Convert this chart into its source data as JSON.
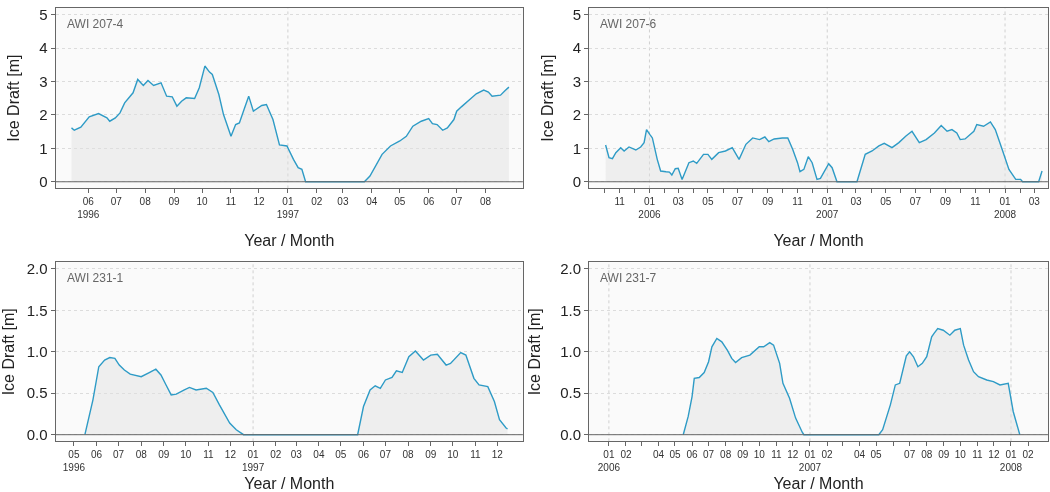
{
  "chart_data": [
    {
      "type": "area",
      "title": "AWI 207-4",
      "xlabel": "Year / Month",
      "ylabel": "Ice Draft [m]",
      "grid": "y",
      "x": [
        "1996-05-14",
        "1996-05-17",
        "1996-05-24",
        "1996-06-02",
        "1996-06-12",
        "1996-06-21",
        "1996-06-24",
        "1996-06-30",
        "1996-07-05",
        "1996-07-10",
        "1996-07-19",
        "1996-07-24",
        "1996-07-30",
        "1996-08-04",
        "1996-08-10",
        "1996-08-18",
        "1996-08-24",
        "1996-08-30",
        "1996-09-04",
        "1996-09-09",
        "1996-09-14",
        "1996-09-23",
        "1996-09-28",
        "1996-10-04",
        "1996-10-09",
        "1996-10-12",
        "1996-10-19",
        "1996-10-24",
        "1996-11-01",
        "1996-11-06",
        "1996-11-10",
        "1996-11-15",
        "1996-11-20",
        "1996-11-25",
        "1996-12-04",
        "1996-12-09",
        "1996-12-16",
        "1996-12-23",
        "1996-12-31",
        "1997-01-07",
        "1997-01-12",
        "1997-01-16",
        "1997-01-20",
        "1997-03-24",
        "1997-03-30",
        "1997-04-12",
        "1997-04-21",
        "1997-05-01",
        "1997-05-08",
        "1997-05-15",
        "1997-05-24",
        "1997-06-01",
        "1997-06-05",
        "1997-06-10",
        "1997-06-16",
        "1997-06-21",
        "1997-06-28",
        "1997-07-01",
        "1997-07-06",
        "1997-07-15",
        "1997-07-22",
        "1997-07-30",
        "1997-08-04",
        "1997-08-08",
        "1997-08-17",
        "1997-08-22",
        "1997-08-26"
      ],
      "series": [
        {
          "color": "#2e9bc6",
          "values": [
            1.61,
            1.54,
            1.63,
            1.94,
            2.04,
            1.91,
            1.81,
            1.91,
            2.06,
            2.36,
            2.66,
            3.06,
            2.88,
            3.03,
            2.88,
            2.96,
            2.56,
            2.54,
            2.26,
            2.41,
            2.51,
            2.49,
            2.81,
            3.46,
            3.28,
            3.21,
            2.61,
            2.01,
            1.36,
            1.71,
            1.76,
            2.16,
            2.56,
            2.11,
            2.28,
            2.31,
            1.86,
            1.1,
            1.07,
            0.67,
            0.42,
            0.37,
            0,
            0,
            0.17,
            0.82,
            1.07,
            1.22,
            1.36,
            1.66,
            1.81,
            1.89,
            1.74,
            1.71,
            1.54,
            1.61,
            1.86,
            2.11,
            2.24,
            2.46,
            2.63,
            2.74,
            2.68,
            2.56,
            2.59,
            2.73,
            2.83
          ]
        }
      ],
      "xlim": [
        "1996-04-27",
        "1997-09-10"
      ],
      "ylim": [
        -0.2,
        5.2
      ],
      "yticks": [
        0,
        1,
        2,
        3,
        4,
        5
      ],
      "xticks": [
        {
          "value": "1996-06",
          "label": "06\n1996"
        },
        {
          "value": "1996-07",
          "label": "07"
        },
        {
          "value": "1996-08",
          "label": "08"
        },
        {
          "value": "1996-09",
          "label": "09"
        },
        {
          "value": "1996-10",
          "label": "10"
        },
        {
          "value": "1996-11",
          "label": "11"
        },
        {
          "value": "1996-12",
          "label": "12"
        },
        {
          "value": "1997-01",
          "label": "01\n1997"
        },
        {
          "value": "1997-02",
          "label": "02"
        },
        {
          "value": "1997-03",
          "label": "03"
        },
        {
          "value": "1997-04",
          "label": "04"
        },
        {
          "value": "1997-05",
          "label": "05"
        },
        {
          "value": "1997-06",
          "label": "06"
        },
        {
          "value": "1997-07",
          "label": "07"
        },
        {
          "value": "1997-08",
          "label": "08"
        }
      ],
      "ref_lines": [
        {
          "axis": "x",
          "value": "1997-01-01",
          "color": "#d0d0d0",
          "line_style": "dotted"
        },
        {
          "axis": "y",
          "value": 0,
          "color": "#666666",
          "line_style": "solid"
        }
      ]
    },
    {
      "type": "area",
      "title": "AWI 207-6",
      "xlabel": "Year / Month",
      "ylabel": "Ice Draft [m]",
      "grid": "y",
      "x": [
        "2005-10-03",
        "2005-10-10",
        "2005-10-17",
        "2005-10-24",
        "2005-11-03",
        "2005-11-10",
        "2005-11-20",
        "2005-12-04",
        "2005-12-14",
        "2005-12-21",
        "2005-12-26",
        "2006-01-02",
        "2006-01-07",
        "2006-01-17",
        "2006-01-24",
        "2006-02-04",
        "2006-02-11",
        "2006-02-16",
        "2006-02-23",
        "2006-03-01",
        "2006-03-09",
        "2006-03-23",
        "2006-04-01",
        "2006-04-08",
        "2006-04-22",
        "2006-05-01",
        "2006-05-09",
        "2006-05-23",
        "2006-06-06",
        "2006-06-20",
        "2006-07-04",
        "2006-07-18",
        "2006-08-01",
        "2006-08-15",
        "2006-08-26",
        "2006-09-03",
        "2006-09-14",
        "2006-10-01",
        "2006-10-12",
        "2006-10-22",
        "2006-11-01",
        "2006-11-06",
        "2006-11-14",
        "2006-11-23",
        "2006-12-01",
        "2006-12-11",
        "2006-12-18",
        "2007-01-04",
        "2007-01-11",
        "2007-01-21",
        "2007-03-03",
        "2007-03-20",
        "2007-04-03",
        "2007-04-17",
        "2007-04-28",
        "2007-05-14",
        "2007-05-28",
        "2007-06-11",
        "2007-06-24",
        "2007-07-09",
        "2007-07-23",
        "2007-08-09",
        "2007-08-23",
        "2007-09-04",
        "2007-09-14",
        "2007-09-24",
        "2007-10-01",
        "2007-10-11",
        "2007-10-29",
        "2007-11-04",
        "2007-11-18",
        "2007-12-02",
        "2007-12-12",
        "2007-12-26",
        "2008-01-09",
        "2008-01-23",
        "2008-02-02",
        "2008-02-06",
        "2008-03-10",
        "2008-03-17"
      ],
      "series": [
        {
          "color": "#2e9bc6",
          "values": [
            1.1,
            0.72,
            0.69,
            0.87,
            1.02,
            0.92,
            1.04,
            0.95,
            1.04,
            1.17,
            1.56,
            1.41,
            1.31,
            0.67,
            0.32,
            0.3,
            0.29,
            0.2,
            0.39,
            0.4,
            0.07,
            0.57,
            0.62,
            0.55,
            0.82,
            0.82,
            0.67,
            0.87,
            0.92,
            1.02,
            0.67,
            1.12,
            1.31,
            1.26,
            1.34,
            1.2,
            1.28,
            1.31,
            1.31,
            0.97,
            0.57,
            0.3,
            0.37,
            0.75,
            0.57,
            0.07,
            0.1,
            0.54,
            0.42,
            0,
            0,
            0.82,
            0.92,
            1.07,
            1.15,
            1.02,
            1.17,
            1.36,
            1.51,
            1.17,
            1.26,
            1.46,
            1.68,
            1.51,
            1.56,
            1.46,
            1.26,
            1.28,
            1.51,
            1.71,
            1.66,
            1.79,
            1.56,
            0.97,
            0.37,
            0.07,
            0.07,
            0,
            0,
            0.32
          ]
        }
      ],
      "xlim": [
        "2005-08-30",
        "2008-03-29"
      ],
      "ylim": [
        -0.2,
        5.2
      ],
      "yticks": [
        0,
        1,
        2,
        3,
        4,
        5
      ],
      "xticks": [
        {
          "value": "2005-10",
          "label": null
        },
        {
          "value": "2005-11",
          "label": "11"
        },
        {
          "value": "2005-12",
          "label": null
        },
        {
          "value": "2006-01",
          "label": "01\n2006"
        },
        {
          "value": "2006-02",
          "label": null
        },
        {
          "value": "2006-03",
          "label": "03"
        },
        {
          "value": "2006-04",
          "label": null
        },
        {
          "value": "2006-05",
          "label": "05"
        },
        {
          "value": "2006-06",
          "label": null
        },
        {
          "value": "2006-07",
          "label": "07"
        },
        {
          "value": "2006-08",
          "label": null
        },
        {
          "value": "2006-09",
          "label": "09"
        },
        {
          "value": "2006-10",
          "label": null
        },
        {
          "value": "2006-11",
          "label": "11"
        },
        {
          "value": "2006-12",
          "label": null
        },
        {
          "value": "2007-01",
          "label": "01\n2007"
        },
        {
          "value": "2007-02",
          "label": null
        },
        {
          "value": "2007-03",
          "label": "03"
        },
        {
          "value": "2007-04",
          "label": null
        },
        {
          "value": "2007-05",
          "label": "05"
        },
        {
          "value": "2007-06",
          "label": null
        },
        {
          "value": "2007-07",
          "label": "07"
        },
        {
          "value": "2007-08",
          "label": null
        },
        {
          "value": "2007-09",
          "label": "09"
        },
        {
          "value": "2007-10",
          "label": null
        },
        {
          "value": "2007-11",
          "label": "11"
        },
        {
          "value": "2007-12",
          "label": null
        },
        {
          "value": "2008-01",
          "label": "01\n2008"
        },
        {
          "value": "2008-02",
          "label": null
        },
        {
          "value": "2008-03",
          "label": "03"
        }
      ],
      "ref_lines": [
        {
          "axis": "x",
          "value": "2006-01-01",
          "color": "#d0d0d0",
          "line_style": "dotted"
        },
        {
          "axis": "x",
          "value": "2007-01-01",
          "color": "#d0d0d0",
          "line_style": "dotted"
        },
        {
          "axis": "x",
          "value": "2008-01-01",
          "color": "#d0d0d0",
          "line_style": "dotted"
        },
        {
          "axis": "y",
          "value": 0,
          "color": "#666666",
          "line_style": "solid"
        }
      ]
    },
    {
      "type": "area",
      "title": "AWI 231-1",
      "xlabel": "Year / Month",
      "ylabel": "Ice Draft [m]",
      "grid": "y",
      "x": [
        "1996-05-16",
        "1996-05-27",
        "1996-06-04",
        "1996-06-12",
        "1996-06-19",
        "1996-06-26",
        "1996-07-02",
        "1996-07-09",
        "1996-07-17",
        "1996-08-01",
        "1996-08-12",
        "1996-08-21",
        "1996-08-28",
        "1996-09-04",
        "1996-09-11",
        "1996-09-18",
        "1996-09-29",
        "1996-10-06",
        "1996-10-15",
        "1996-10-29",
        "1996-11-07",
        "1996-11-16",
        "1996-11-30",
        "1996-12-09",
        "1996-12-19",
        "1997-05-24",
        "1997-06-01",
        "1997-06-10",
        "1997-06-17",
        "1997-06-24",
        "1997-07-01",
        "1997-07-10",
        "1997-07-16",
        "1997-07-24",
        "1997-08-02",
        "1997-08-11",
        "1997-08-22",
        "1997-09-01",
        "1997-09-10",
        "1997-09-22",
        "1997-09-28",
        "1997-10-12",
        "1997-10-19",
        "1997-10-30",
        "1997-11-06",
        "1997-11-18",
        "1997-11-27",
        "1997-12-04",
        "1997-12-13",
        "1997-12-15"
      ],
      "series": [
        {
          "color": "#2e9bc6",
          "values": [
            0,
            0.42,
            0.82,
            0.9,
            0.93,
            0.92,
            0.84,
            0.78,
            0.73,
            0.7,
            0.75,
            0.79,
            0.72,
            0.6,
            0.48,
            0.49,
            0.54,
            0.57,
            0.54,
            0.56,
            0.51,
            0.36,
            0.14,
            0.06,
            0,
            0,
            0.34,
            0.54,
            0.59,
            0.56,
            0.66,
            0.69,
            0.77,
            0.75,
            0.94,
            1.01,
            0.9,
            0.96,
            0.97,
            0.84,
            0.86,
            0.99,
            0.96,
            0.68,
            0.6,
            0.58,
            0.4,
            0.18,
            0.08,
            0.07
          ]
        }
      ],
      "xlim": [
        "1996-04-06",
        "1998-01-05"
      ],
      "ylim": [
        -0.08,
        2.08
      ],
      "yticks": [
        {
          "value": 0,
          "label": "0.0"
        },
        0.5,
        {
          "value": 1,
          "label": "1.0"
        },
        1.5,
        {
          "value": 2,
          "label": "2.0"
        }
      ],
      "xticks": [
        {
          "value": "1996-05",
          "label": "05\n1996"
        },
        {
          "value": "1996-06",
          "label": "06"
        },
        {
          "value": "1996-07",
          "label": "07"
        },
        {
          "value": "1996-08",
          "label": "08"
        },
        {
          "value": "1996-09",
          "label": "09"
        },
        {
          "value": "1996-10",
          "label": "10"
        },
        {
          "value": "1996-11",
          "label": "11"
        },
        {
          "value": "1996-12",
          "label": "12"
        },
        {
          "value": "1997-01",
          "label": "01\n1997"
        },
        {
          "value": "1997-02",
          "label": "02"
        },
        {
          "value": "1997-03",
          "label": "03"
        },
        {
          "value": "1997-04",
          "label": "04"
        },
        {
          "value": "1997-05",
          "label": "05"
        },
        {
          "value": "1997-06",
          "label": "06"
        },
        {
          "value": "1997-07",
          "label": "07"
        },
        {
          "value": "1997-08",
          "label": "08"
        },
        {
          "value": "1997-09",
          "label": "09"
        },
        {
          "value": "1997-10",
          "label": "10"
        },
        {
          "value": "1997-11",
          "label": "11"
        },
        {
          "value": "1997-12",
          "label": "12"
        }
      ],
      "ref_lines": [
        {
          "axis": "x",
          "value": "1997-01-01",
          "color": "#d0d0d0",
          "line_style": "dotted"
        },
        {
          "axis": "y",
          "value": 0,
          "color": "#666666",
          "line_style": "solid"
        }
      ]
    },
    {
      "type": "area",
      "title": "AWI 231-7",
      "xlabel": "Year / Month",
      "ylabel": "Ice Draft [m]",
      "grid": "y",
      "x": [
        "2006-05-16",
        "2006-05-25",
        "2006-06-01",
        "2006-06-05",
        "2006-06-14",
        "2006-06-23",
        "2006-07-01",
        "2006-07-07",
        "2006-07-16",
        "2006-07-25",
        "2006-08-04",
        "2006-08-12",
        "2006-08-19",
        "2006-08-30",
        "2006-09-14",
        "2006-10-01",
        "2006-10-09",
        "2006-10-20",
        "2006-10-27",
        "2006-11-07",
        "2006-11-13",
        "2006-11-25",
        "2006-12-06",
        "2006-12-18",
        "2006-12-21",
        "2007-05-06",
        "2007-05-13",
        "2007-05-27",
        "2007-06-05",
        "2007-06-13",
        "2007-06-25",
        "2007-07-01",
        "2007-07-08",
        "2007-07-16",
        "2007-07-24",
        "2007-08-01",
        "2007-08-10",
        "2007-08-14",
        "2007-08-21",
        "2007-08-31",
        "2007-09-12",
        "2007-09-21",
        "2007-10-01",
        "2007-10-07",
        "2007-10-16",
        "2007-10-25",
        "2007-11-03",
        "2007-11-18",
        "2007-11-30",
        "2007-12-12",
        "2007-12-27",
        "2008-01-05",
        "2008-01-17"
      ],
      "series": [
        {
          "color": "#2e9bc6",
          "values": [
            0,
            0.22,
            0.46,
            0.68,
            0.69,
            0.75,
            0.88,
            1.06,
            1.16,
            1.12,
            1.02,
            0.92,
            0.87,
            0.93,
            0.96,
            1.06,
            1.06,
            1.11,
            1.08,
            0.86,
            0.62,
            0.44,
            0.2,
            0.03,
            0,
            0,
            0.06,
            0.36,
            0.6,
            0.62,
            0.95,
            1.0,
            0.94,
            0.82,
            0.86,
            0.94,
            1.18,
            1.22,
            1.28,
            1.26,
            1.2,
            1.26,
            1.28,
            1.08,
            0.9,
            0.76,
            0.7,
            0.66,
            0.64,
            0.6,
            0.62,
            0.28,
            0
          ]
        }
      ],
      "xlim": [
        "2005-11-26",
        "2008-03-08"
      ],
      "ylim": [
        -0.08,
        2.08
      ],
      "yticks": [
        {
          "value": 0,
          "label": "0.0"
        },
        0.5,
        {
          "value": 1,
          "label": "1.0"
        },
        1.5,
        {
          "value": 2,
          "label": "2.0"
        }
      ],
      "xticks": [
        {
          "value": "2006-01",
          "label": "01\n2006"
        },
        {
          "value": "2006-02",
          "label": "02"
        },
        {
          "value": "2006-03",
          "label": null
        },
        {
          "value": "2006-04",
          "label": "04"
        },
        {
          "value": "2006-05",
          "label": "05"
        },
        {
          "value": "2006-06",
          "label": "06"
        },
        {
          "value": "2006-07",
          "label": "07"
        },
        {
          "value": "2006-08",
          "label": "08"
        },
        {
          "value": "2006-09",
          "label": "09"
        },
        {
          "value": "2006-10",
          "label": "10"
        },
        {
          "value": "2006-11",
          "label": "11"
        },
        {
          "value": "2006-12",
          "label": "12"
        },
        {
          "value": "2007-01",
          "label": "01\n2007"
        },
        {
          "value": "2007-02",
          "label": "02"
        },
        {
          "value": "2007-03",
          "label": null
        },
        {
          "value": "2007-04",
          "label": "04"
        },
        {
          "value": "2007-05",
          "label": "05"
        },
        {
          "value": "2007-06",
          "label": null
        },
        {
          "value": "2007-07",
          "label": "07"
        },
        {
          "value": "2007-08",
          "label": "08"
        },
        {
          "value": "2007-09",
          "label": "09"
        },
        {
          "value": "2007-10",
          "label": "10"
        },
        {
          "value": "2007-11",
          "label": "11"
        },
        {
          "value": "2007-12",
          "label": "12"
        },
        {
          "value": "2008-01",
          "label": "01\n2008"
        },
        {
          "value": "2008-02",
          "label": "02"
        }
      ],
      "ref_lines": [
        {
          "axis": "x",
          "value": "2006-01-01",
          "color": "#d0d0d0",
          "line_style": "dotted"
        },
        {
          "axis": "x",
          "value": "2007-01-01",
          "color": "#d0d0d0",
          "line_style": "dotted"
        },
        {
          "axis": "x",
          "value": "2008-01-01",
          "color": "#d0d0d0",
          "line_style": "dotted"
        },
        {
          "axis": "y",
          "value": 0,
          "color": "#666666",
          "line_style": "solid"
        }
      ]
    }
  ]
}
